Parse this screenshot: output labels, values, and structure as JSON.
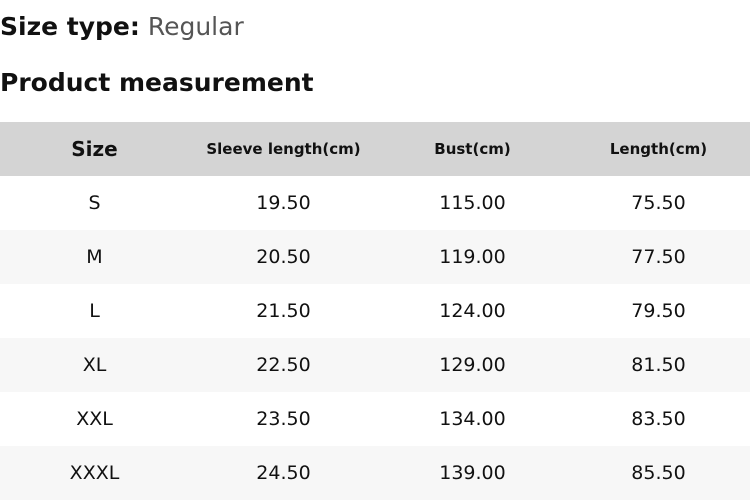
{
  "size_type": {
    "label": "Size type:",
    "value": "Regular"
  },
  "title": "Product measurement",
  "headers": [
    "Size",
    "Sleeve length(cm)",
    "Bust(cm)",
    "Length(cm)"
  ],
  "rows": [
    [
      "S",
      "19.50",
      "115.00",
      "75.50"
    ],
    [
      "M",
      "20.50",
      "119.00",
      "77.50"
    ],
    [
      "L",
      "21.50",
      "124.00",
      "79.50"
    ],
    [
      "XL",
      "22.50",
      "129.00",
      "81.50"
    ],
    [
      "XXL",
      "23.50",
      "134.00",
      "83.50"
    ],
    [
      "XXXL",
      "24.50",
      "139.00",
      "85.50"
    ]
  ]
}
